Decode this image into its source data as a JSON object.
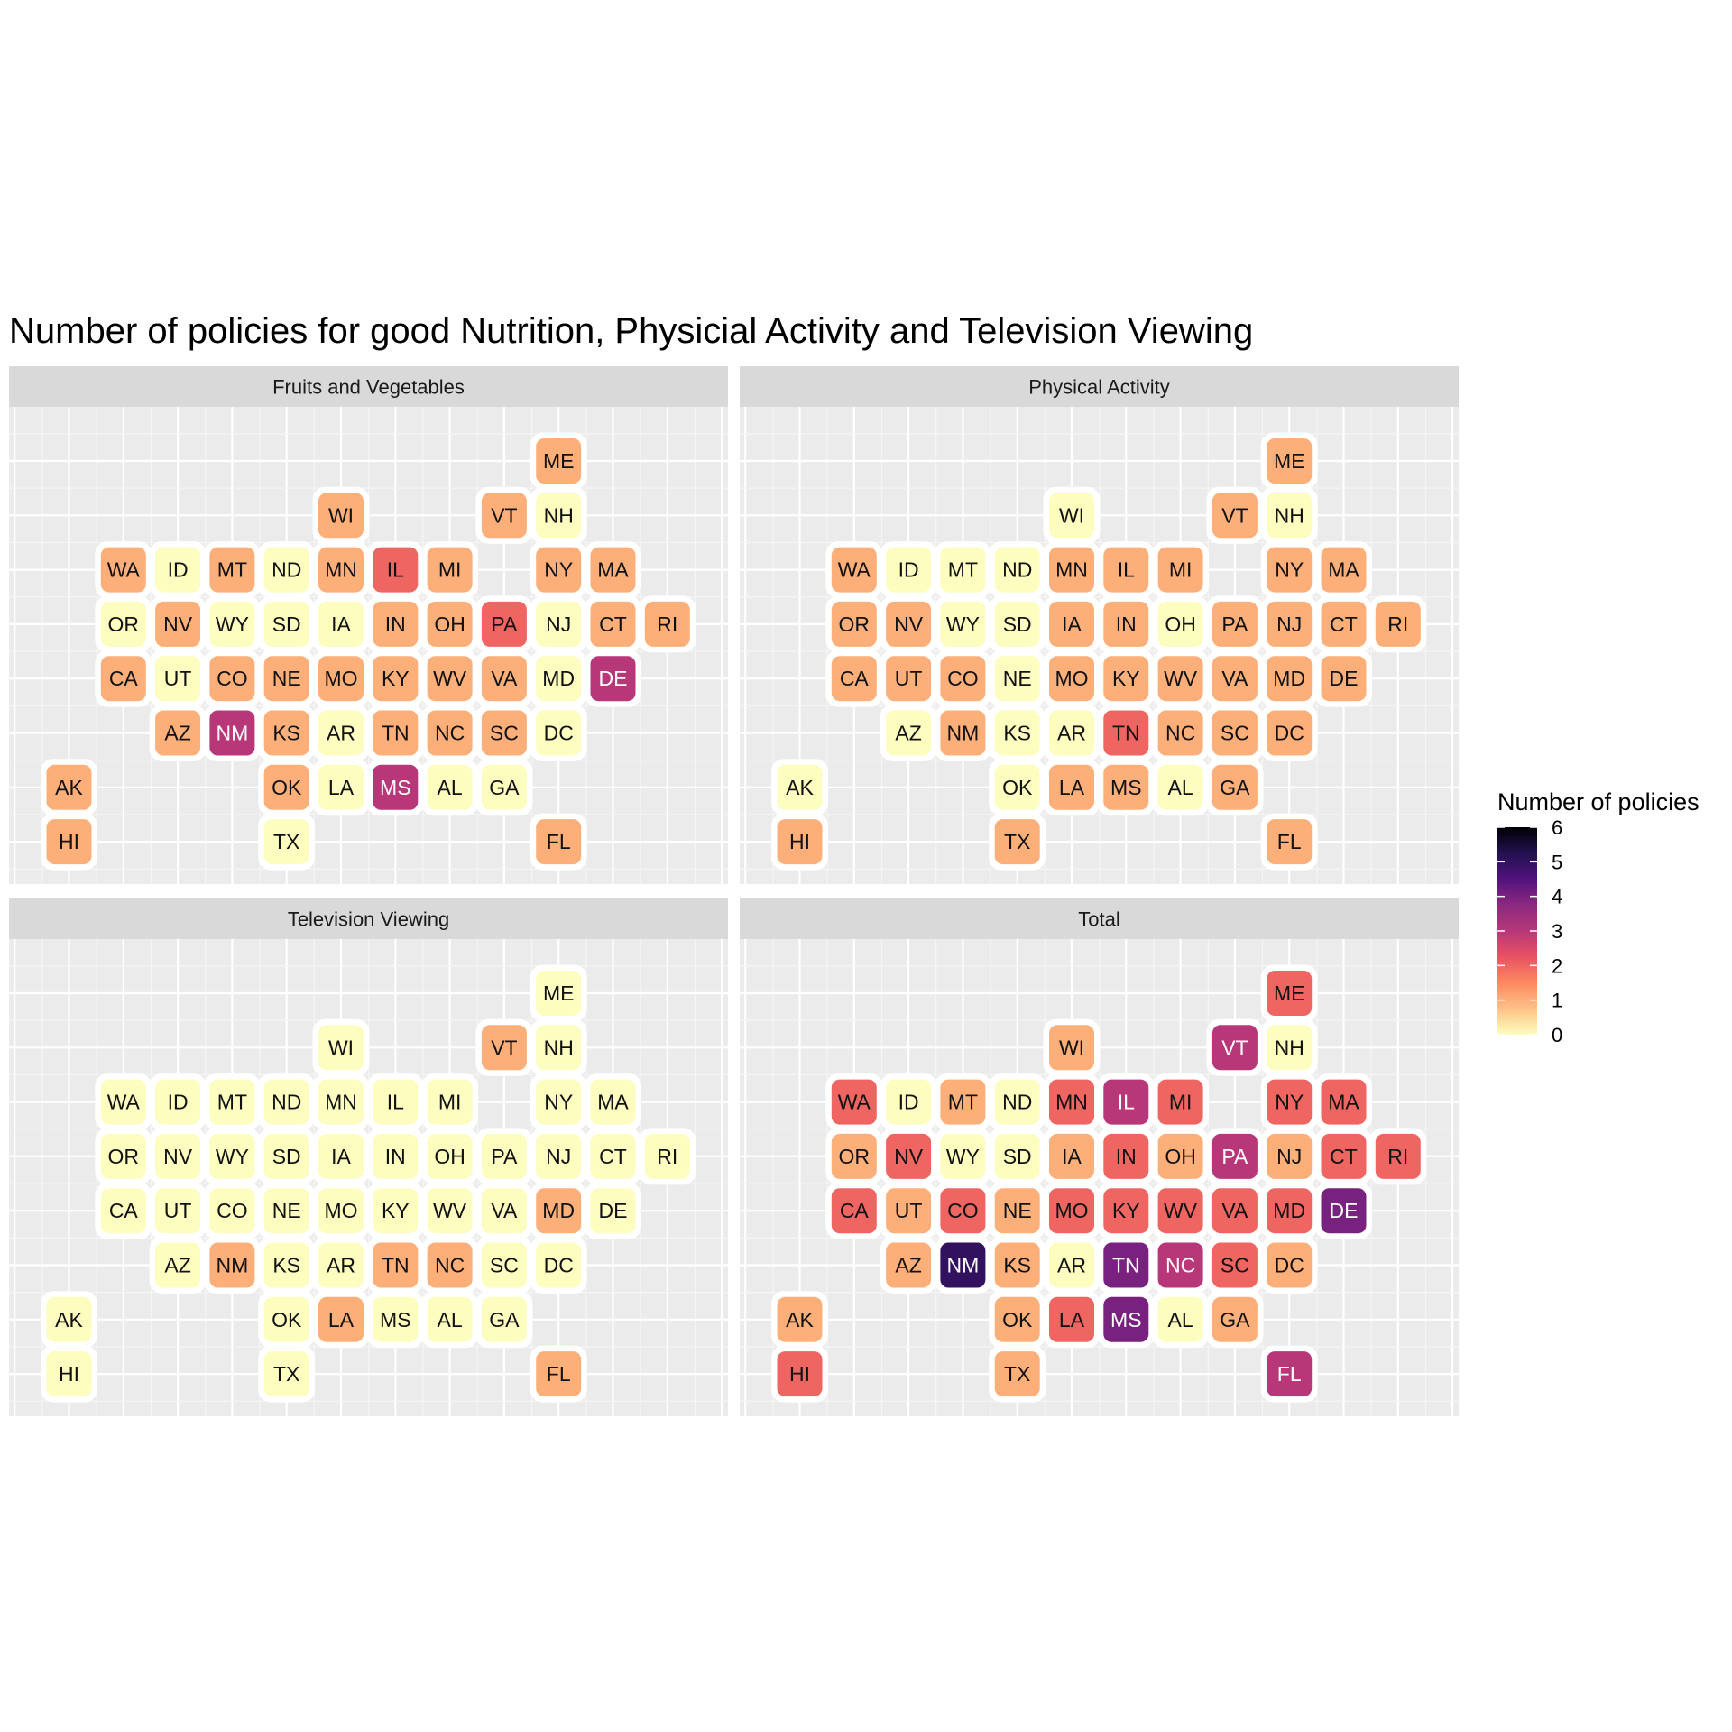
{
  "chart_data": {
    "type": "heatmap",
    "title": "Number of policies for good Nutrition, Physicial Activity and Television Viewing",
    "legend": {
      "title": "Number of policies",
      "min": 0,
      "max": 6,
      "ticks": [
        0,
        1,
        2,
        3,
        4,
        5,
        6
      ],
      "placement": "right"
    },
    "grid": true,
    "panels": [
      {
        "name": "Fruits and Vegetables",
        "values": {
          "ME": 1,
          "WI": 1,
          "VT": 1,
          "NH": 0,
          "WA": 1,
          "ID": 0,
          "MT": 1,
          "ND": 0,
          "MN": 1,
          "IL": 2,
          "MI": 1,
          "NY": 1,
          "MA": 1,
          "OR": 0,
          "NV": 1,
          "WY": 0,
          "SD": 0,
          "IA": 0,
          "IN": 1,
          "OH": 1,
          "PA": 2,
          "NJ": 0,
          "CT": 1,
          "RI": 1,
          "CA": 1,
          "UT": 0,
          "CO": 1,
          "NE": 1,
          "MO": 1,
          "KY": 1,
          "WV": 1,
          "VA": 1,
          "MD": 0,
          "DE": 3,
          "AZ": 1,
          "NM": 3,
          "KS": 1,
          "AR": 0,
          "TN": 1,
          "NC": 1,
          "SC": 1,
          "DC": 0,
          "AK": 1,
          "OK": 1,
          "LA": 0,
          "MS": 3,
          "AL": 0,
          "GA": 0,
          "HI": 1,
          "TX": 0,
          "FL": 1
        }
      },
      {
        "name": "Physical Activity",
        "values": {
          "ME": 1,
          "WI": 0,
          "VT": 1,
          "NH": 0,
          "WA": 1,
          "ID": 0,
          "MT": 0,
          "ND": 0,
          "MN": 1,
          "IL": 1,
          "MI": 1,
          "NY": 1,
          "MA": 1,
          "OR": 1,
          "NV": 1,
          "WY": 0,
          "SD": 0,
          "IA": 1,
          "IN": 1,
          "OH": 0,
          "PA": 1,
          "NJ": 1,
          "CT": 1,
          "RI": 1,
          "CA": 1,
          "UT": 1,
          "CO": 1,
          "NE": 0,
          "MO": 1,
          "KY": 1,
          "WV": 1,
          "VA": 1,
          "MD": 1,
          "DE": 1,
          "AZ": 0,
          "NM": 1,
          "KS": 0,
          "AR": 0,
          "TN": 2,
          "NC": 1,
          "SC": 1,
          "DC": 1,
          "AK": 0,
          "OK": 0,
          "LA": 1,
          "MS": 1,
          "AL": 0,
          "GA": 1,
          "HI": 1,
          "TX": 1,
          "FL": 1
        }
      },
      {
        "name": "Television Viewing",
        "values": {
          "ME": 0,
          "WI": 0,
          "VT": 1,
          "NH": 0,
          "WA": 0,
          "ID": 0,
          "MT": 0,
          "ND": 0,
          "MN": 0,
          "IL": 0,
          "MI": 0,
          "NY": 0,
          "MA": 0,
          "OR": 0,
          "NV": 0,
          "WY": 0,
          "SD": 0,
          "IA": 0,
          "IN": 0,
          "OH": 0,
          "PA": 0,
          "NJ": 0,
          "CT": 0,
          "RI": 0,
          "CA": 0,
          "UT": 0,
          "CO": 0,
          "NE": 0,
          "MO": 0,
          "KY": 0,
          "WV": 0,
          "VA": 0,
          "MD": 1,
          "DE": 0,
          "AZ": 0,
          "NM": 1,
          "KS": 0,
          "AR": 0,
          "TN": 1,
          "NC": 1,
          "SC": 0,
          "DC": 0,
          "AK": 0,
          "OK": 0,
          "LA": 1,
          "MS": 0,
          "AL": 0,
          "GA": 0,
          "HI": 0,
          "TX": 0,
          "FL": 1
        }
      },
      {
        "name": "Total",
        "values": {
          "ME": 2,
          "WI": 1,
          "VT": 3,
          "NH": 0,
          "WA": 2,
          "ID": 0,
          "MT": 1,
          "ND": 0,
          "MN": 2,
          "IL": 3,
          "MI": 2,
          "NY": 2,
          "MA": 2,
          "OR": 1,
          "NV": 2,
          "WY": 0,
          "SD": 0,
          "IA": 1,
          "IN": 2,
          "OH": 1,
          "PA": 3,
          "NJ": 1,
          "CT": 2,
          "RI": 2,
          "CA": 2,
          "UT": 1,
          "CO": 2,
          "NE": 1,
          "MO": 2,
          "KY": 2,
          "WV": 2,
          "VA": 2,
          "MD": 2,
          "DE": 4,
          "AZ": 1,
          "NM": 5,
          "KS": 1,
          "AR": 0,
          "TN": 4,
          "NC": 3,
          "SC": 2,
          "DC": 1,
          "AK": 1,
          "OK": 1,
          "LA": 2,
          "MS": 4,
          "AL": 0,
          "GA": 1,
          "HI": 2,
          "TX": 1,
          "FL": 3
        }
      }
    ],
    "tile_grid": [
      {
        "state": "ME",
        "col": 10,
        "row": 1
      },
      {
        "state": "WI",
        "col": 6,
        "row": 2
      },
      {
        "state": "VT",
        "col": 9,
        "row": 2
      },
      {
        "state": "NH",
        "col": 10,
        "row": 2
      },
      {
        "state": "WA",
        "col": 2,
        "row": 3
      },
      {
        "state": "ID",
        "col": 3,
        "row": 3
      },
      {
        "state": "MT",
        "col": 4,
        "row": 3
      },
      {
        "state": "ND",
        "col": 5,
        "row": 3
      },
      {
        "state": "MN",
        "col": 6,
        "row": 3
      },
      {
        "state": "IL",
        "col": 7,
        "row": 3
      },
      {
        "state": "MI",
        "col": 8,
        "row": 3
      },
      {
        "state": "NY",
        "col": 10,
        "row": 3
      },
      {
        "state": "MA",
        "col": 11,
        "row": 3
      },
      {
        "state": "OR",
        "col": 2,
        "row": 4
      },
      {
        "state": "NV",
        "col": 3,
        "row": 4
      },
      {
        "state": "WY",
        "col": 4,
        "row": 4
      },
      {
        "state": "SD",
        "col": 5,
        "row": 4
      },
      {
        "state": "IA",
        "col": 6,
        "row": 4
      },
      {
        "state": "IN",
        "col": 7,
        "row": 4
      },
      {
        "state": "OH",
        "col": 8,
        "row": 4
      },
      {
        "state": "PA",
        "col": 9,
        "row": 4
      },
      {
        "state": "NJ",
        "col": 10,
        "row": 4
      },
      {
        "state": "CT",
        "col": 11,
        "row": 4
      },
      {
        "state": "RI",
        "col": 12,
        "row": 4
      },
      {
        "state": "CA",
        "col": 2,
        "row": 5
      },
      {
        "state": "UT",
        "col": 3,
        "row": 5
      },
      {
        "state": "CO",
        "col": 4,
        "row": 5
      },
      {
        "state": "NE",
        "col": 5,
        "row": 5
      },
      {
        "state": "MO",
        "col": 6,
        "row": 5
      },
      {
        "state": "KY",
        "col": 7,
        "row": 5
      },
      {
        "state": "WV",
        "col": 8,
        "row": 5
      },
      {
        "state": "VA",
        "col": 9,
        "row": 5
      },
      {
        "state": "MD",
        "col": 10,
        "row": 5
      },
      {
        "state": "DE",
        "col": 11,
        "row": 5
      },
      {
        "state": "AZ",
        "col": 3,
        "row": 6
      },
      {
        "state": "NM",
        "col": 4,
        "row": 6
      },
      {
        "state": "KS",
        "col": 5,
        "row": 6
      },
      {
        "state": "AR",
        "col": 6,
        "row": 6
      },
      {
        "state": "TN",
        "col": 7,
        "row": 6
      },
      {
        "state": "NC",
        "col": 8,
        "row": 6
      },
      {
        "state": "SC",
        "col": 9,
        "row": 6
      },
      {
        "state": "DC",
        "col": 10,
        "row": 6
      },
      {
        "state": "AK",
        "col": 1,
        "row": 7
      },
      {
        "state": "OK",
        "col": 5,
        "row": 7
      },
      {
        "state": "LA",
        "col": 6,
        "row": 7
      },
      {
        "state": "MS",
        "col": 7,
        "row": 7
      },
      {
        "state": "AL",
        "col": 8,
        "row": 7
      },
      {
        "state": "GA",
        "col": 9,
        "row": 7
      },
      {
        "state": "HI",
        "col": 1,
        "row": 8
      },
      {
        "state": "TX",
        "col": 5,
        "row": 8
      },
      {
        "state": "FL",
        "col": 10,
        "row": 8
      }
    ]
  }
}
